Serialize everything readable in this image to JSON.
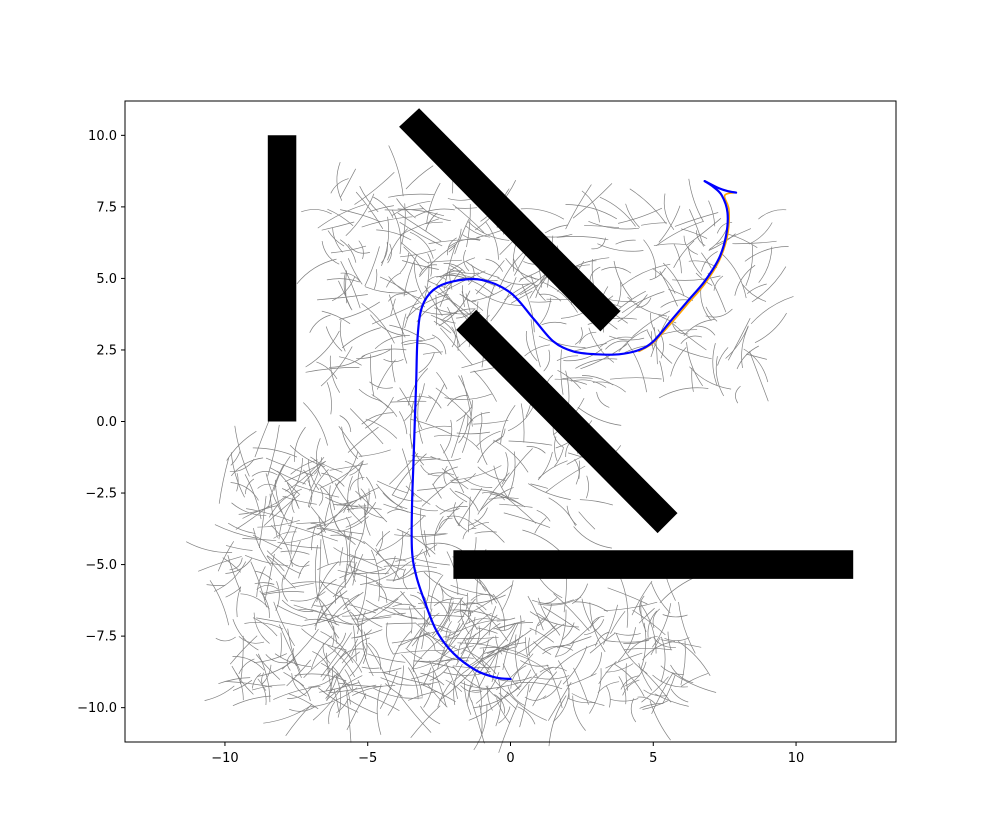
{
  "chart_data": {
    "type": "scatter",
    "title": "",
    "xlabel": "",
    "ylabel": "",
    "xlim": [
      -13.5,
      13.5
    ],
    "ylim": [
      -11.2,
      11.2
    ],
    "grid": false,
    "legend": "none",
    "x_ticks": [
      -10,
      -5,
      0,
      5,
      10
    ],
    "y_ticks": [
      -10.0,
      -7.5,
      -5.0,
      -2.5,
      0.0,
      2.5,
      5.0,
      7.5,
      10.0
    ],
    "x_tick_labels": [
      "−10",
      "−5",
      "0",
      "5",
      "10"
    ],
    "y_tick_labels": [
      "−10.0",
      "−7.5",
      "−5.0",
      "−2.5",
      "0.0",
      "2.5",
      "5.0",
      "7.5",
      "10.0"
    ],
    "obstacles": [
      {
        "corners": [
          [
            -8.5,
            0
          ],
          [
            -7.5,
            0
          ],
          [
            -7.5,
            10
          ],
          [
            -8.5,
            10
          ]
        ]
      },
      {
        "corners": [
          [
            -3.9,
            10.3
          ],
          [
            -3.2,
            10.95
          ],
          [
            3.85,
            3.85
          ],
          [
            3.15,
            3.15
          ]
        ]
      },
      {
        "corners": [
          [
            -1.9,
            3.2
          ],
          [
            -1.2,
            3.9
          ],
          [
            5.85,
            -3.2
          ],
          [
            5.15,
            -3.9
          ]
        ]
      },
      {
        "corners": [
          [
            -2.0,
            -5.5
          ],
          [
            12.0,
            -5.5
          ],
          [
            12.0,
            -4.5
          ],
          [
            -2.0,
            -4.5
          ]
        ]
      }
    ],
    "tree_regions": [
      {
        "x": [
          -10.0,
          -5.0
        ],
        "y": [
          -10.0,
          -1.0
        ],
        "count": 240
      },
      {
        "x": [
          -6.5,
          -1.0
        ],
        "y": [
          -10.0,
          8.2
        ],
        "count": 360
      },
      {
        "x": [
          -3.5,
          6.0
        ],
        "y": [
          -10.0,
          -6.0
        ],
        "count": 230
      },
      {
        "x": [
          -2.5,
          3.0
        ],
        "y": [
          -4.0,
          0.5
        ],
        "count": 70
      },
      {
        "x": [
          -3.5,
          1.0
        ],
        "y": [
          3.0,
          7.0
        ],
        "count": 60
      },
      {
        "x": [
          1.0,
          8.7
        ],
        "y": [
          1.0,
          7.2
        ],
        "count": 170
      }
    ],
    "tree_color": "#808080",
    "series": [
      {
        "color": "#0000ff",
        "x": [
          0.0,
          -0.5,
          -1.2,
          -2.0,
          -2.6,
          -3.0,
          -3.3,
          -3.45,
          -3.45,
          -3.4,
          -3.35,
          -3.3,
          -3.25,
          -3.1,
          -2.7,
          -2.0,
          -1.0,
          0.0,
          0.8,
          1.5,
          2.2,
          3.0,
          3.8,
          4.5,
          5.0,
          5.6,
          6.2,
          6.8,
          7.3,
          7.55,
          7.6,
          7.4,
          7.1,
          6.8
        ],
        "y": [
          -9.0,
          -8.95,
          -8.7,
          -8.1,
          -7.3,
          -6.3,
          -5.4,
          -4.5,
          -3.0,
          -1.5,
          0.0,
          1.5,
          3.0,
          4.0,
          4.6,
          4.9,
          4.95,
          4.5,
          3.6,
          2.8,
          2.45,
          2.35,
          2.35,
          2.5,
          2.8,
          3.5,
          4.2,
          4.9,
          5.7,
          6.5,
          7.3,
          7.9,
          8.2,
          8.4
        ]
      },
      {
        "color": "#ffa500",
        "x": [
          4.5,
          5.0,
          5.6,
          6.2,
          6.8,
          7.3,
          7.6,
          7.65,
          7.5,
          7.9
        ],
        "y": [
          2.45,
          2.75,
          3.4,
          4.1,
          4.8,
          5.6,
          6.5,
          7.4,
          7.9,
          8.0
        ]
      },
      {
        "color": "#0000ff",
        "x": [
          6.8,
          7.3,
          7.6,
          7.9
        ],
        "y": [
          8.4,
          8.15,
          8.05,
          8.0
        ]
      }
    ]
  }
}
